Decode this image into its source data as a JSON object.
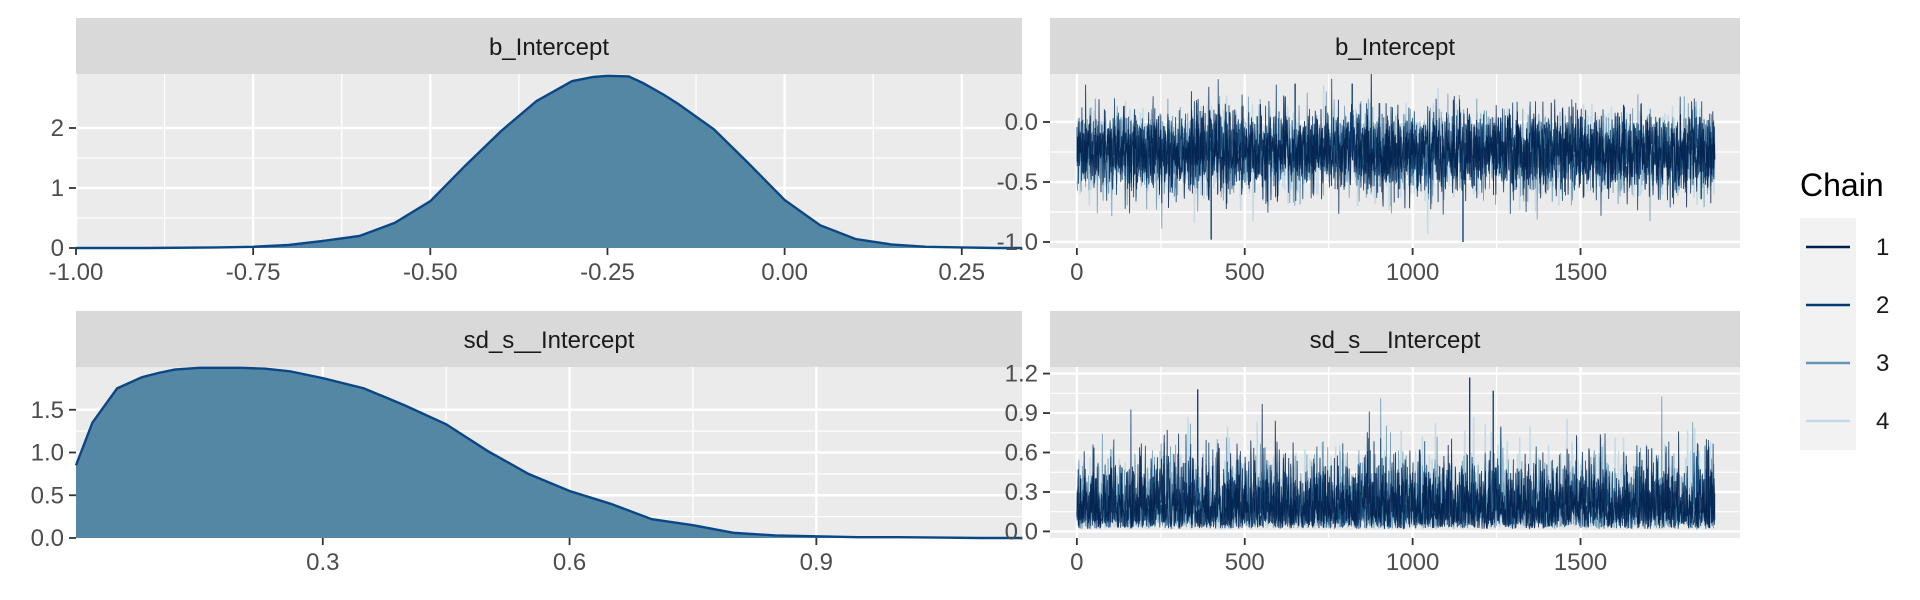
{
  "chart_data": [
    {
      "type": "area",
      "panel": "density",
      "strip_label": "b_Intercept",
      "xlim": [
        -1.0,
        0.335
      ],
      "ylim": [
        0,
        2.9
      ],
      "x_ticks": [
        -1.0,
        -0.75,
        -0.5,
        -0.25,
        0.0,
        0.25
      ],
      "x_tick_labels": [
        "-1.00",
        "-0.75",
        "-0.50",
        "-0.25",
        "0.00",
        "0.25"
      ],
      "y_ticks": [
        0,
        1,
        2
      ],
      "y_tick_labels": [
        "0",
        "1",
        "2"
      ],
      "x": [
        -1.0,
        -0.9,
        -0.8,
        -0.75,
        -0.7,
        -0.65,
        -0.6,
        -0.55,
        -0.5,
        -0.45,
        -0.4,
        -0.35,
        -0.3,
        -0.27,
        -0.25,
        -0.22,
        -0.2,
        -0.17,
        -0.15,
        -0.1,
        -0.05,
        0.0,
        0.05,
        0.1,
        0.15,
        0.2,
        0.25,
        0.3,
        0.335
      ],
      "y": [
        0.0,
        0.0,
        0.01,
        0.02,
        0.05,
        0.12,
        0.2,
        0.42,
        0.78,
        1.38,
        1.95,
        2.45,
        2.78,
        2.85,
        2.87,
        2.86,
        2.75,
        2.55,
        2.4,
        1.98,
        1.4,
        0.8,
        0.38,
        0.15,
        0.06,
        0.02,
        0.01,
        0.0,
        0.0
      ],
      "fill_color": "#5387a4",
      "line_color": "#0b4785"
    },
    {
      "type": "area",
      "panel": "density",
      "strip_label": "sd_s__Intercept",
      "xlim": [
        0.0,
        1.15
      ],
      "ylim": [
        0,
        2.0
      ],
      "x_ticks": [
        0.3,
        0.6,
        0.9
      ],
      "x_tick_labels": [
        "0.3",
        "0.6",
        "0.9"
      ],
      "y_ticks": [
        0.0,
        0.5,
        1.0,
        1.5
      ],
      "y_tick_labels": [
        "0.0",
        "0.5",
        "1.0",
        "1.5"
      ],
      "x": [
        0.0,
        0.02,
        0.05,
        0.08,
        0.1,
        0.12,
        0.15,
        0.2,
        0.23,
        0.26,
        0.3,
        0.35,
        0.4,
        0.45,
        0.5,
        0.55,
        0.6,
        0.65,
        0.7,
        0.75,
        0.8,
        0.85,
        0.9,
        0.95,
        1.0,
        1.05,
        1.1,
        1.15
      ],
      "y": [
        0.85,
        1.35,
        1.75,
        1.88,
        1.93,
        1.97,
        1.99,
        1.99,
        1.98,
        1.95,
        1.87,
        1.75,
        1.55,
        1.33,
        1.02,
        0.75,
        0.55,
        0.4,
        0.22,
        0.15,
        0.06,
        0.03,
        0.02,
        0.01,
        0.01,
        0.005,
        0.0,
        0.0
      ],
      "fill_color": "#5387a4",
      "line_color": "#0b4785"
    },
    {
      "type": "line",
      "panel": "trace",
      "strip_label": "b_Intercept",
      "xlim": [
        -80,
        1975
      ],
      "ylim": [
        -1.05,
        0.4
      ],
      "x_ticks": [
        0,
        500,
        1000,
        1500
      ],
      "x_tick_labels": [
        "0",
        "500",
        "1000",
        "1500"
      ],
      "y_ticks": [
        0.0,
        -0.5,
        -1.0
      ],
      "y_tick_labels": [
        "0.0",
        "-0.5",
        "-1.0"
      ],
      "iterations": 1900,
      "center": -0.25,
      "typical_spread": 0.17,
      "notable_draws": [
        {
          "iter": 400,
          "value": -0.98
        },
        {
          "iter": 1150,
          "value": -1.0
        },
        {
          "iter": 820,
          "value": 0.32
        },
        {
          "iter": 650,
          "value": 0.32
        }
      ]
    },
    {
      "type": "line",
      "panel": "trace",
      "strip_label": "sd_s__Intercept",
      "xlim": [
        -80,
        1975
      ],
      "ylim": [
        -0.05,
        1.25
      ],
      "x_ticks": [
        0,
        500,
        1000,
        1500
      ],
      "x_tick_labels": [
        "0",
        "500",
        "1000",
        "1500"
      ],
      "y_ticks": [
        0.0,
        0.3,
        0.6,
        0.9,
        1.2
      ],
      "y_tick_labels": [
        "0.0",
        "0.3",
        "0.6",
        "0.9",
        "1.2"
      ],
      "iterations": 1900,
      "center": 0.3,
      "typical_spread": 0.22,
      "notable_draws": [
        {
          "iter": 1170,
          "value": 1.17
        },
        {
          "iter": 360,
          "value": 1.08
        },
        {
          "iter": 1240,
          "value": 1.07
        }
      ]
    }
  ],
  "legend": {
    "title": "Chain",
    "entries": [
      {
        "label": "1",
        "color": "#011f4b"
      },
      {
        "label": "2",
        "color": "#03396c"
      },
      {
        "label": "3",
        "color": "#6497b1"
      },
      {
        "label": "4",
        "color": "#c3d9e6"
      }
    ]
  },
  "colors": {
    "panel_background": "#ebebeb",
    "strip_background": "#d9d9d9",
    "grid": "#ffffff"
  }
}
